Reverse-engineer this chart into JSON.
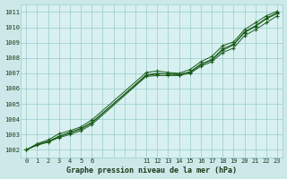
{
  "title": "Graphe pression niveau de la mer (hPa)",
  "bg_color": "#cce8e8",
  "plot_bg_color": "#d8f0f0",
  "grid_color": "#99cccc",
  "line_color": "#1a5c1a",
  "marker_color": "#1a5c1a",
  "ylim": [
    1001.5,
    1011.5
  ],
  "yticks": [
    1002,
    1003,
    1004,
    1005,
    1006,
    1007,
    1008,
    1009,
    1010,
    1011
  ],
  "x_hours": [
    0,
    1,
    2,
    3,
    4,
    5,
    6,
    11,
    12,
    13,
    14,
    15,
    16,
    17,
    18,
    19,
    20,
    21,
    22,
    23
  ],
  "series": [
    [
      1002.0,
      1002.4,
      1002.65,
      1003.05,
      1003.25,
      1003.5,
      1003.95,
      1007.05,
      1007.15,
      1007.05,
      1007.0,
      1007.25,
      1007.75,
      1008.1,
      1008.8,
      1009.05,
      1009.85,
      1010.3,
      1010.75,
      1011.05
    ],
    [
      1002.0,
      1002.35,
      1002.55,
      1002.9,
      1003.15,
      1003.4,
      1003.8,
      1006.85,
      1006.95,
      1006.95,
      1006.95,
      1007.05,
      1007.55,
      1007.85,
      1008.5,
      1008.85,
      1009.65,
      1010.05,
      1010.55,
      1010.9
    ],
    [
      1002.0,
      1002.3,
      1002.5,
      1002.8,
      1003.0,
      1003.25,
      1003.65,
      1006.8,
      1006.85,
      1006.85,
      1006.85,
      1007.0,
      1007.45,
      1007.75,
      1008.35,
      1008.65,
      1009.45,
      1009.85,
      1010.3,
      1010.75
    ],
    [
      1002.0,
      1002.35,
      1002.55,
      1002.85,
      1003.1,
      1003.35,
      1003.75,
      1006.9,
      1007.0,
      1006.95,
      1006.9,
      1007.1,
      1007.6,
      1007.9,
      1008.6,
      1008.9,
      1009.7,
      1010.1,
      1010.6,
      1010.95
    ]
  ]
}
